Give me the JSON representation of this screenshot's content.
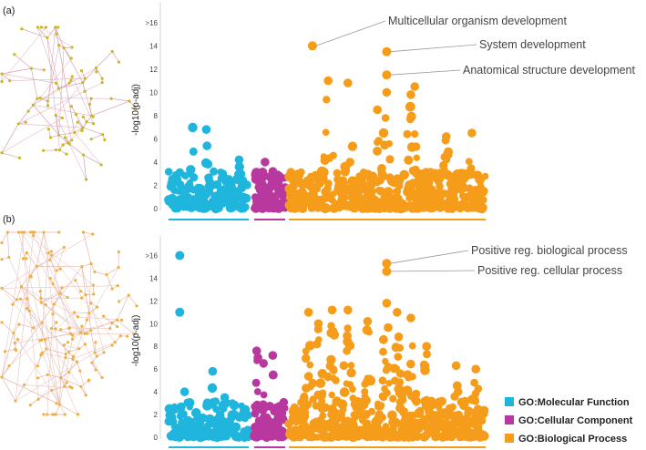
{
  "colors": {
    "mf": "#1fb5dd",
    "cc": "#b8389f",
    "bp": "#f59d1a",
    "network_node_a": "#c9b81e",
    "network_edge_a": "#d9a0b0",
    "network_node_b": "#f0b040",
    "network_edge_b": "#e6b8b0"
  },
  "legend": {
    "items": [
      {
        "key": "mf",
        "label": "GO:Molecular Function"
      },
      {
        "key": "cc",
        "label": "GO:Cellular Component"
      },
      {
        "key": "bp",
        "label": "GO:Biological Process"
      }
    ]
  },
  "chart_data": [
    {
      "type": "scatter",
      "panel_label": "(a)",
      "ylabel": "-log10(p-adj)",
      "yticks": [
        "0",
        "2",
        "4",
        "6",
        "8",
        "10",
        "12",
        "14",
        ">16"
      ],
      "ylim": [
        0,
        17
      ],
      "categories": [
        "GO:Molecular Function",
        "GO:Cellular Component",
        "GO:Biological Process"
      ],
      "highlights": [
        {
          "label": "Multicellular organism development",
          "category": "bp",
          "x_frac": 0.12,
          "value": 14.0
        },
        {
          "label": "System development",
          "category": "bp",
          "x_frac": 0.497,
          "value": 13.5
        },
        {
          "label": "Anatomical structure development",
          "category": "bp",
          "x_frac": 0.497,
          "value": 11.5
        }
      ],
      "bands": {
        "mf": {
          "max": 7.0,
          "peaks": [
            [
              0.3,
              7.0
            ],
            [
              0.47,
              6.8
            ],
            [
              0.48,
              5.4
            ],
            [
              0.88,
              4.2
            ]
          ]
        },
        "cc": {
          "max": 4.0,
          "peaks": [
            [
              0.35,
              4.0
            ],
            [
              0.6,
              3.2
            ]
          ]
        },
        "bp": {
          "max": 11.0,
          "peaks": [
            [
              0.2,
              11.0
            ],
            [
              0.3,
              10.8
            ],
            [
              0.45,
              8.5
            ],
            [
              0.497,
              10.0
            ],
            [
              0.62,
              9.8
            ],
            [
              0.64,
              10.5
            ],
            [
              0.8,
              6.2
            ],
            [
              0.93,
              6.5
            ]
          ]
        }
      }
    },
    {
      "type": "scatter",
      "panel_label": "(b)",
      "ylabel": "-log10(p-adj)",
      "yticks": [
        "0",
        "2",
        "4",
        "6",
        "8",
        "10",
        "12",
        "14",
        ">16"
      ],
      "ylim": [
        0,
        17
      ],
      "categories": [
        "GO:Molecular Function",
        "GO:Cellular Component",
        "GO:Biological Process"
      ],
      "highlights": [
        {
          "label": "Positive reg. biological process",
          "category": "bp",
          "x_frac": 0.497,
          "value": 15.3
        },
        {
          "label": "Positive reg. cellular process",
          "category": "bp",
          "x_frac": 0.497,
          "value": 14.6
        },
        {
          "label": "",
          "category": "mf",
          "x_frac": 0.14,
          "value": 16.0
        },
        {
          "label": "",
          "category": "mf",
          "x_frac": 0.14,
          "value": 11.0
        }
      ],
      "bands": {
        "mf": {
          "max": 5.8,
          "peaks": [
            [
              0.2,
              4.0
            ],
            [
              0.55,
              5.8
            ],
            [
              0.7,
              3.5
            ]
          ]
        },
        "cc": {
          "max": 7.6,
          "peaks": [
            [
              0.08,
              7.6
            ],
            [
              0.12,
              7.0
            ],
            [
              0.3,
              6.5
            ],
            [
              0.6,
              7.2
            ]
          ]
        },
        "bp": {
          "max": 11.8,
          "peaks": [
            [
              0.1,
              11.0
            ],
            [
              0.15,
              10.0
            ],
            [
              0.22,
              11.2
            ],
            [
              0.3,
              11.2
            ],
            [
              0.4,
              10.2
            ],
            [
              0.497,
              11.8
            ],
            [
              0.55,
              11.0
            ],
            [
              0.62,
              10.5
            ],
            [
              0.7,
              8.0
            ],
            [
              0.85,
              6.3
            ],
            [
              0.95,
              6.0
            ]
          ]
        }
      }
    }
  ]
}
